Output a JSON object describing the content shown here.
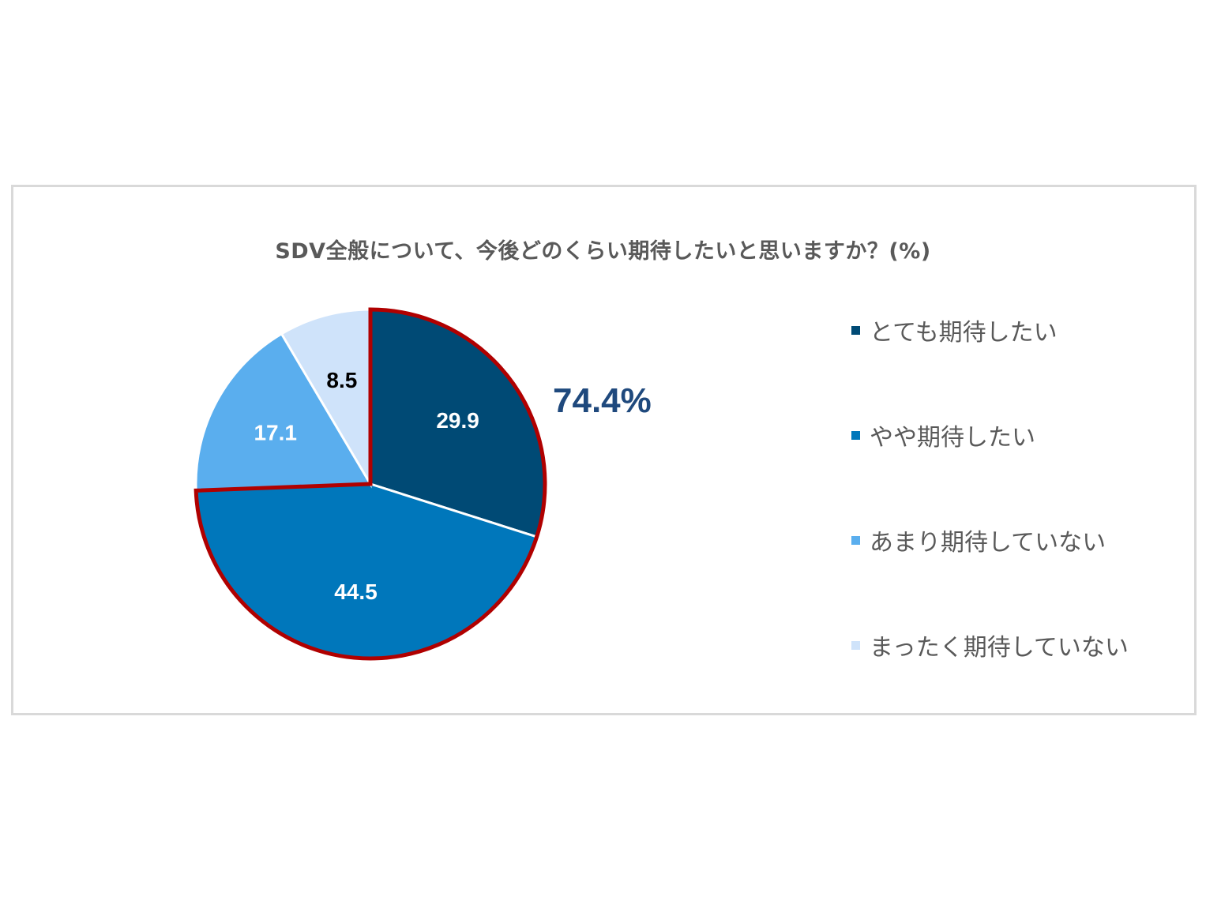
{
  "chart_data": {
    "type": "pie",
    "title": "SDV全般について、今後どのくらい期待したいと思いますか？(%)",
    "categories": [
      "とても期待したい",
      "やや期待したい",
      "あまり期待していない",
      "まったく期待していない"
    ],
    "values": [
      29.9,
      44.5,
      17.1,
      8.5
    ],
    "value_labels": [
      "29.9",
      "44.5",
      "17.1",
      "8.5"
    ],
    "colors": [
      "#004a75",
      "#0077bb",
      "#5aaeee",
      "#cfe3fa"
    ],
    "label_colors": [
      "#ffffff",
      "#ffffff",
      "#ffffff",
      "#000000"
    ],
    "highlight": {
      "text": "74.4%",
      "color": "#1f497d",
      "outline_color": "#b00000"
    },
    "legend_position": "right"
  }
}
